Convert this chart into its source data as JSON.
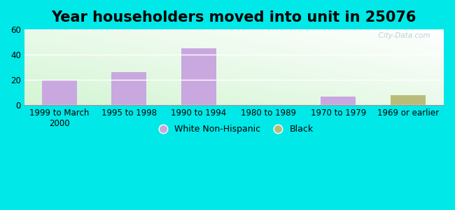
{
  "title": "Year householders moved into unit in 25076",
  "categories": [
    "1999 to March\n2000",
    "1995 to 1998",
    "1990 to 1994",
    "1980 to 1989",
    "1970 to 1979",
    "1969 or earlier"
  ],
  "white_values": [
    20,
    26,
    45,
    0,
    7,
    0
  ],
  "black_values": [
    0,
    0,
    0,
    0,
    0,
    8
  ],
  "white_color": "#c9a8df",
  "black_color": "#b8bc78",
  "ylim": [
    0,
    60
  ],
  "yticks": [
    0,
    20,
    40,
    60
  ],
  "bar_width": 0.5,
  "background_outer": "#00e8e8",
  "title_fontsize": 15,
  "tick_fontsize": 8.5,
  "legend_fontsize": 9,
  "watermark": "  City-Data.com"
}
